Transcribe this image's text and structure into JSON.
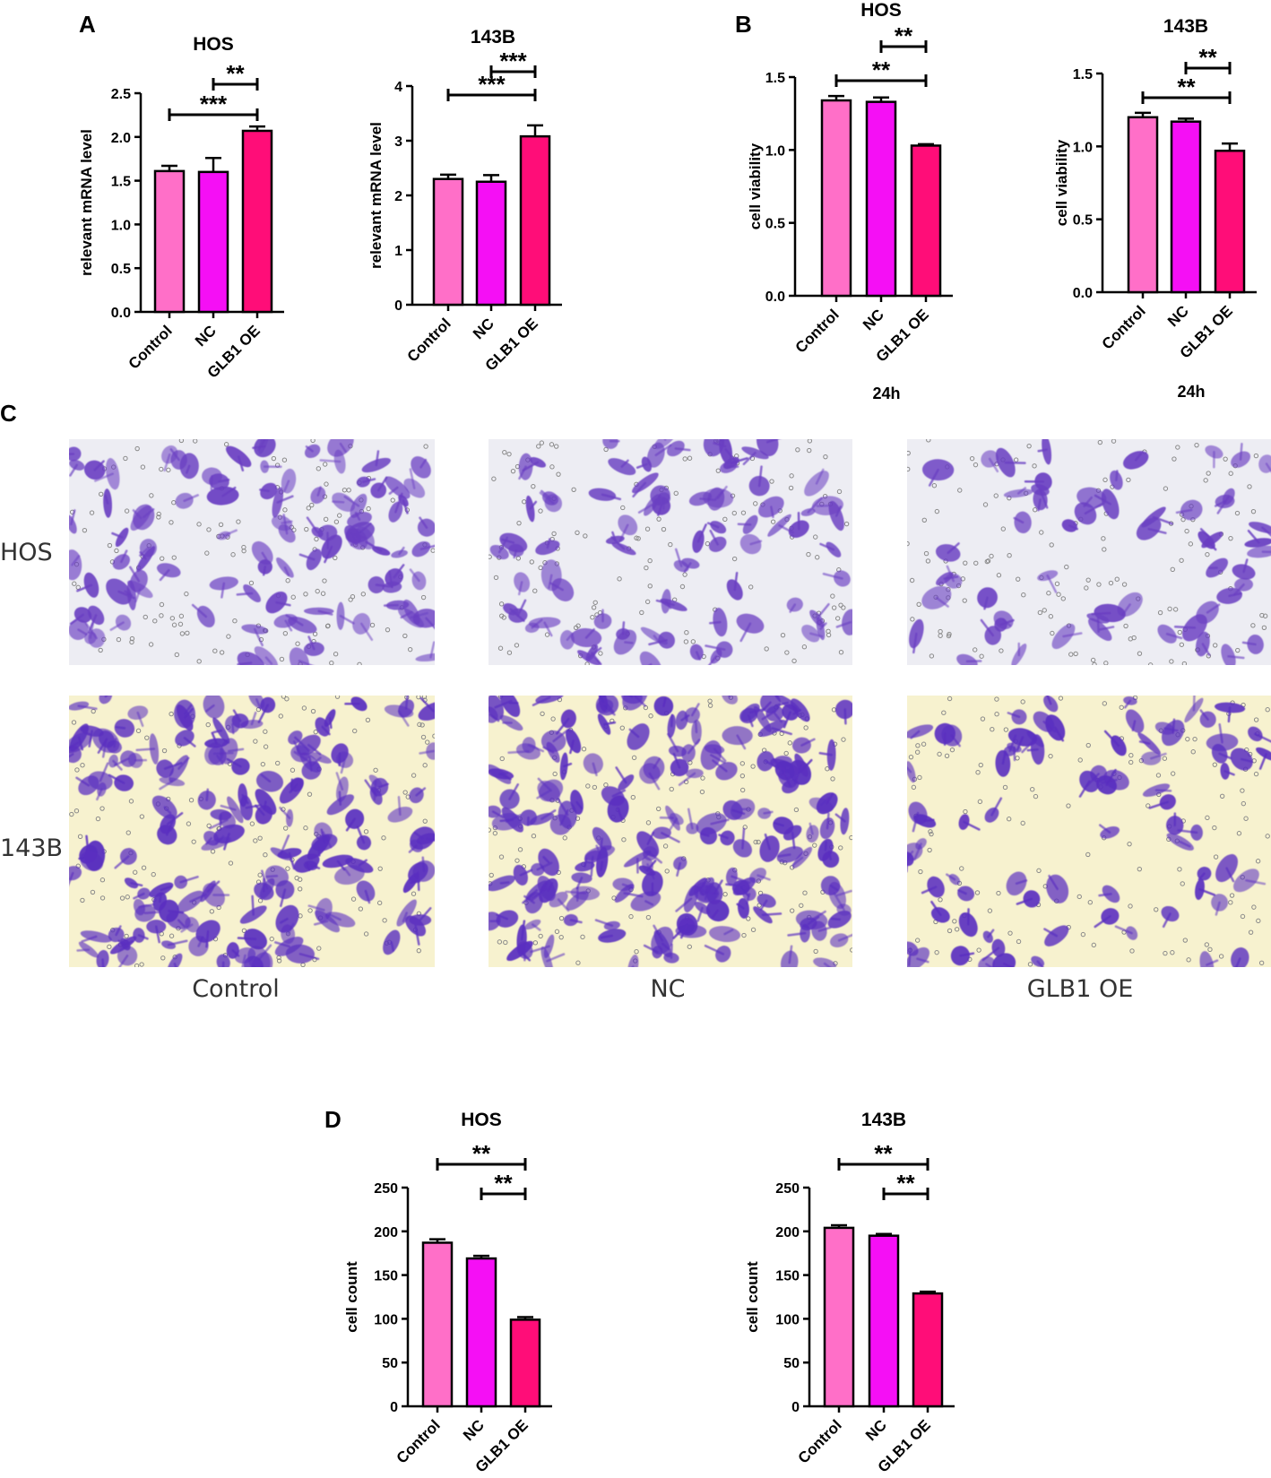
{
  "panels": {
    "A": "A",
    "B": "B",
    "C": "C",
    "D": "D"
  },
  "colors": {
    "control": "#FF6FC8",
    "nc": "#F50FF5",
    "glb1_oe": "#FF0D78",
    "stain": "#6A3FC2",
    "background_hos": "#EDEDF3",
    "background_143b": "#F7F2CF"
  },
  "chart_data": [
    {
      "id": "a_hos",
      "panel": "A",
      "type": "bar",
      "title": "HOS",
      "ylabel": "relevant mRNA level",
      "categories": [
        "Control",
        "NC",
        "GLB1 OE"
      ],
      "values": [
        1.61,
        1.6,
        2.07
      ],
      "errors": [
        0.06,
        0.16,
        0.05
      ],
      "ylim": [
        0,
        2.5
      ],
      "yticks": [
        "0.0",
        "0.5",
        "1.0",
        "1.5",
        "2.0",
        "2.5"
      ],
      "significance": [
        {
          "from": 1,
          "to": 2,
          "label": "**"
        },
        {
          "from": 0,
          "to": 2,
          "label": "***"
        }
      ]
    },
    {
      "id": "a_143b",
      "panel": "A",
      "type": "bar",
      "title": "143B",
      "ylabel": "relevant mRNA level",
      "categories": [
        "Control",
        "NC",
        "GLB1 OE"
      ],
      "values": [
        2.3,
        2.25,
        3.08
      ],
      "errors": [
        0.08,
        0.12,
        0.2
      ],
      "ylim": [
        0,
        4
      ],
      "yticks": [
        "0",
        "1",
        "2",
        "3",
        "4"
      ],
      "significance": [
        {
          "from": 1,
          "to": 2,
          "label": "***"
        },
        {
          "from": 0,
          "to": 2,
          "label": "***"
        }
      ]
    },
    {
      "id": "b_hos",
      "panel": "B",
      "type": "bar",
      "title": "HOS",
      "ylabel": "cell viability",
      "xnote": "24h",
      "categories": [
        "Control",
        "NC",
        "GLB1 OE"
      ],
      "values": [
        1.34,
        1.33,
        1.03
      ],
      "errors": [
        0.03,
        0.03,
        0.01
      ],
      "ylim": [
        0,
        1.5
      ],
      "yticks": [
        "0.0",
        "0.5",
        "1.0",
        "1.5"
      ],
      "significance": [
        {
          "from": 1,
          "to": 2,
          "label": "**"
        },
        {
          "from": 0,
          "to": 2,
          "label": "**"
        }
      ]
    },
    {
      "id": "b_143b",
      "panel": "B",
      "type": "bar",
      "title": "143B",
      "ylabel": "cell viability",
      "xnote": "24h",
      "categories": [
        "Control",
        "NC",
        "GLB1 OE"
      ],
      "values": [
        1.2,
        1.17,
        0.97
      ],
      "errors": [
        0.03,
        0.02,
        0.05
      ],
      "ylim": [
        0,
        1.5
      ],
      "yticks": [
        "0.0",
        "0.5",
        "1.0",
        "1.5"
      ],
      "significance": [
        {
          "from": 1,
          "to": 2,
          "label": "**"
        },
        {
          "from": 0,
          "to": 2,
          "label": "**"
        }
      ]
    },
    {
      "id": "d_hos",
      "panel": "D",
      "type": "bar",
      "title": "HOS",
      "ylabel": "cell count",
      "categories": [
        "Control",
        "NC",
        "GLB1 OE"
      ],
      "values": [
        187,
        169,
        99
      ],
      "errors": [
        4,
        3,
        3
      ],
      "ylim": [
        0,
        250
      ],
      "yticks": [
        "0",
        "50",
        "100",
        "150",
        "200",
        "250"
      ],
      "significance": [
        {
          "from": 0,
          "to": 2,
          "label": "**"
        },
        {
          "from": 1,
          "to": 2,
          "label": "**"
        }
      ]
    },
    {
      "id": "d_143b",
      "panel": "D",
      "type": "bar",
      "title": "143B",
      "ylabel": "cell count",
      "categories": [
        "Control",
        "NC",
        "GLB1 OE"
      ],
      "values": [
        204,
        195,
        129
      ],
      "errors": [
        3,
        2,
        2
      ],
      "ylim": [
        0,
        250
      ],
      "yticks": [
        "0",
        "50",
        "100",
        "150",
        "200",
        "250"
      ],
      "significance": [
        {
          "from": 0,
          "to": 2,
          "label": "**"
        },
        {
          "from": 1,
          "to": 2,
          "label": "**"
        }
      ]
    }
  ],
  "micrographs": {
    "rows": [
      "HOS",
      "143B"
    ],
    "columns": [
      "Control",
      "NC",
      "GLB1 OE"
    ]
  }
}
